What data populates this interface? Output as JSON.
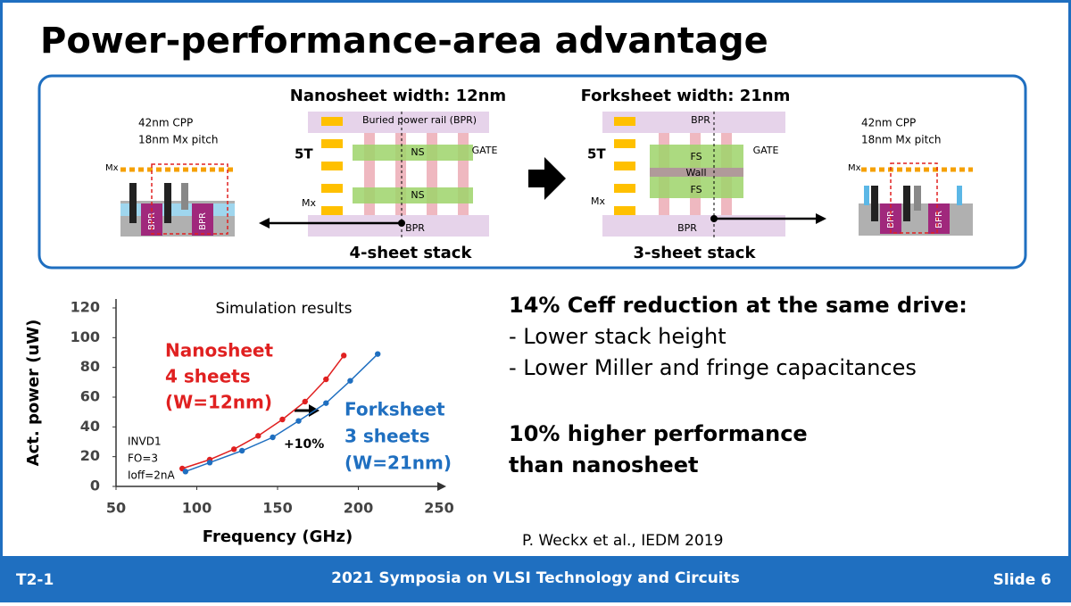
{
  "title": "Power-performance-area advantage",
  "diagram": {
    "left": {
      "cpp": "42nm CPP",
      "pitch": "18nm Mx pitch",
      "mx": "Mx",
      "bpr1": "BPR",
      "bpr2": "BPR"
    },
    "nanosheet": {
      "heading": "Nanosheet width: 12nm",
      "rail": "Buried power rail (BPR)",
      "tracks": "5T",
      "ns1": "NS",
      "ns2": "NS",
      "gate": "GATE",
      "mx": "Mx",
      "bpr": "BPR",
      "stack": "4-sheet stack"
    },
    "forksheet": {
      "heading": "Forksheet width: 21nm",
      "bpr_top": "BPR",
      "tracks": "5T",
      "fs1": "FS",
      "wall": "Wall",
      "fs2": "FS",
      "gate": "GATE",
      "mx": "Mx",
      "bpr": "BPR",
      "stack": "3-sheet stack"
    },
    "right": {
      "cpp": "42nm CPP",
      "pitch": "18nm Mx pitch",
      "mx": "Mx",
      "bpr1": "BPR",
      "bpr2": "BPR"
    }
  },
  "chart_data": {
    "type": "line",
    "title": "Simulation results",
    "x_label": "Frequency (GHz)",
    "y_label": "Act. power (uW)",
    "xlim": [
      50,
      250
    ],
    "xticks": [
      50,
      100,
      150,
      200,
      250
    ],
    "ylim": [
      0,
      120
    ],
    "yticks": [
      0,
      20,
      40,
      60,
      80,
      100,
      120
    ],
    "series": [
      {
        "name": "Nanosheet",
        "color": "#e02020",
        "x": [
          91,
          108,
          123,
          138,
          153,
          167,
          180,
          191
        ],
        "values": [
          12,
          18,
          25,
          34,
          45,
          57,
          72,
          88
        ]
      },
      {
        "name": "Forksheet",
        "color": "#1f6fc0",
        "x": [
          93,
          108,
          128,
          147,
          163,
          180,
          195,
          212
        ],
        "values": [
          10,
          16,
          24,
          33,
          44,
          56,
          71,
          89
        ]
      }
    ],
    "annotations": {
      "ns_sheets": "4 sheets",
      "ns_width": "(W=12nm)",
      "fs_sheets": "3 sheets",
      "fs_width": "(W=21nm)",
      "cond1": "INVD1",
      "cond2": "FO=3",
      "cond3": "Ioff=2nA",
      "gain": "+10%"
    }
  },
  "text": {
    "point1": "14% Ceff reduction at the same drive:",
    "point2": "- Lower stack height",
    "point3": "- Lower Miller and fringe capacitances",
    "point4": "10% higher performance",
    "point5": "than nanosheet"
  },
  "citation": "P. Weckx et al., IEDM 2019",
  "footer": {
    "session": "T2-1",
    "conference": "2021 Symposia on VLSI Technology and Circuits",
    "slide": "Slide 6"
  }
}
